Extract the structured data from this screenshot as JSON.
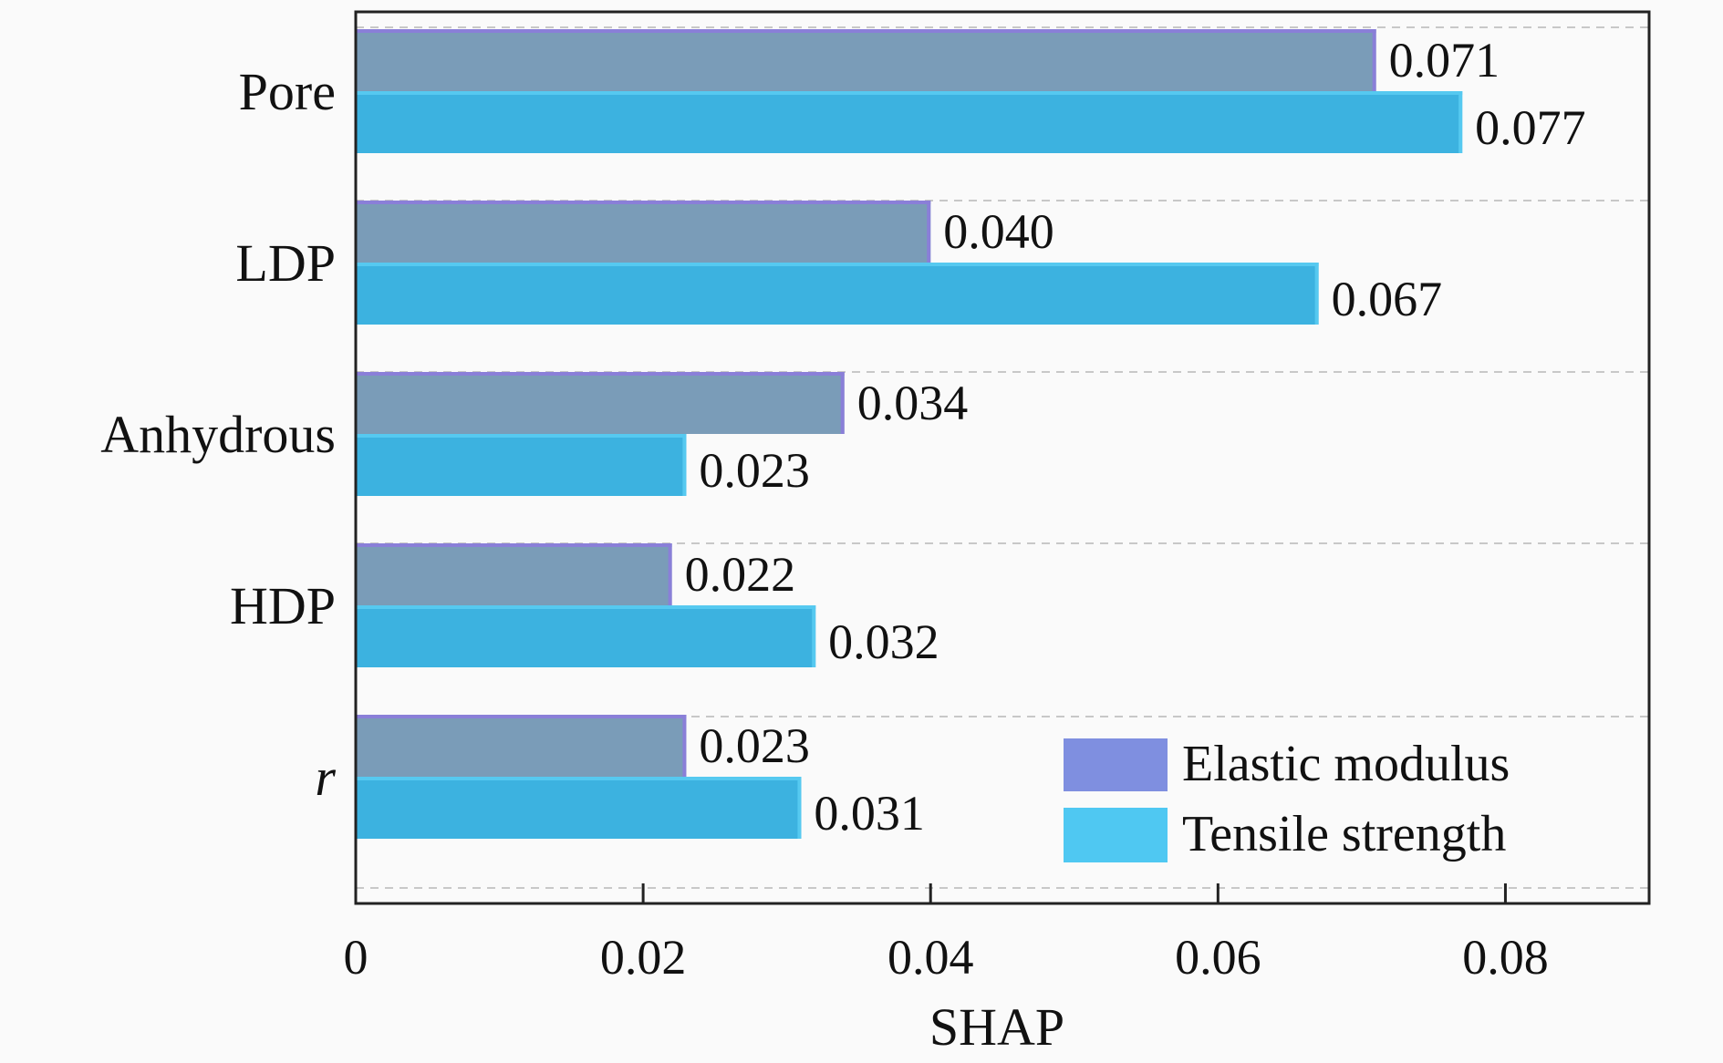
{
  "chart_data": {
    "type": "bar",
    "orientation": "horizontal",
    "title": "",
    "xlabel": "SHAP",
    "ylabel": "",
    "xlim": [
      0,
      0.09
    ],
    "xticks": [
      0,
      0.02,
      0.04,
      0.06,
      0.08
    ],
    "xtick_labels": [
      "0",
      "0.02",
      "0.04",
      "0.06",
      "0.08"
    ],
    "grid": "horizontal dashed",
    "legend_position": "bottom-right",
    "categories": [
      "Pore",
      "LDP",
      "Anhydrous",
      "HDP",
      "r"
    ],
    "series": [
      {
        "name": "Elastic modulus",
        "values": [
          0.071,
          0.04,
          0.034,
          0.022,
          0.023
        ],
        "labels": [
          "0.071",
          "0.040",
          "0.034",
          "0.022",
          "0.023"
        ]
      },
      {
        "name": "Tensile strength",
        "values": [
          0.077,
          0.067,
          0.023,
          0.032,
          0.031
        ],
        "labels": [
          "0.077",
          "0.067",
          "0.023",
          "0.032",
          "0.031"
        ]
      }
    ],
    "colors": {
      "elastic_bar": "#7a9cb8",
      "elastic_edge": "#8a7fd8",
      "tensile_bar": "#3cb2e0",
      "tensile_edge": "#56c9f0",
      "legend_elastic": "#7f8fe0",
      "legend_tensile": "#4fc8f2",
      "grid": "#c8c8c8",
      "axis": "#222222"
    }
  }
}
